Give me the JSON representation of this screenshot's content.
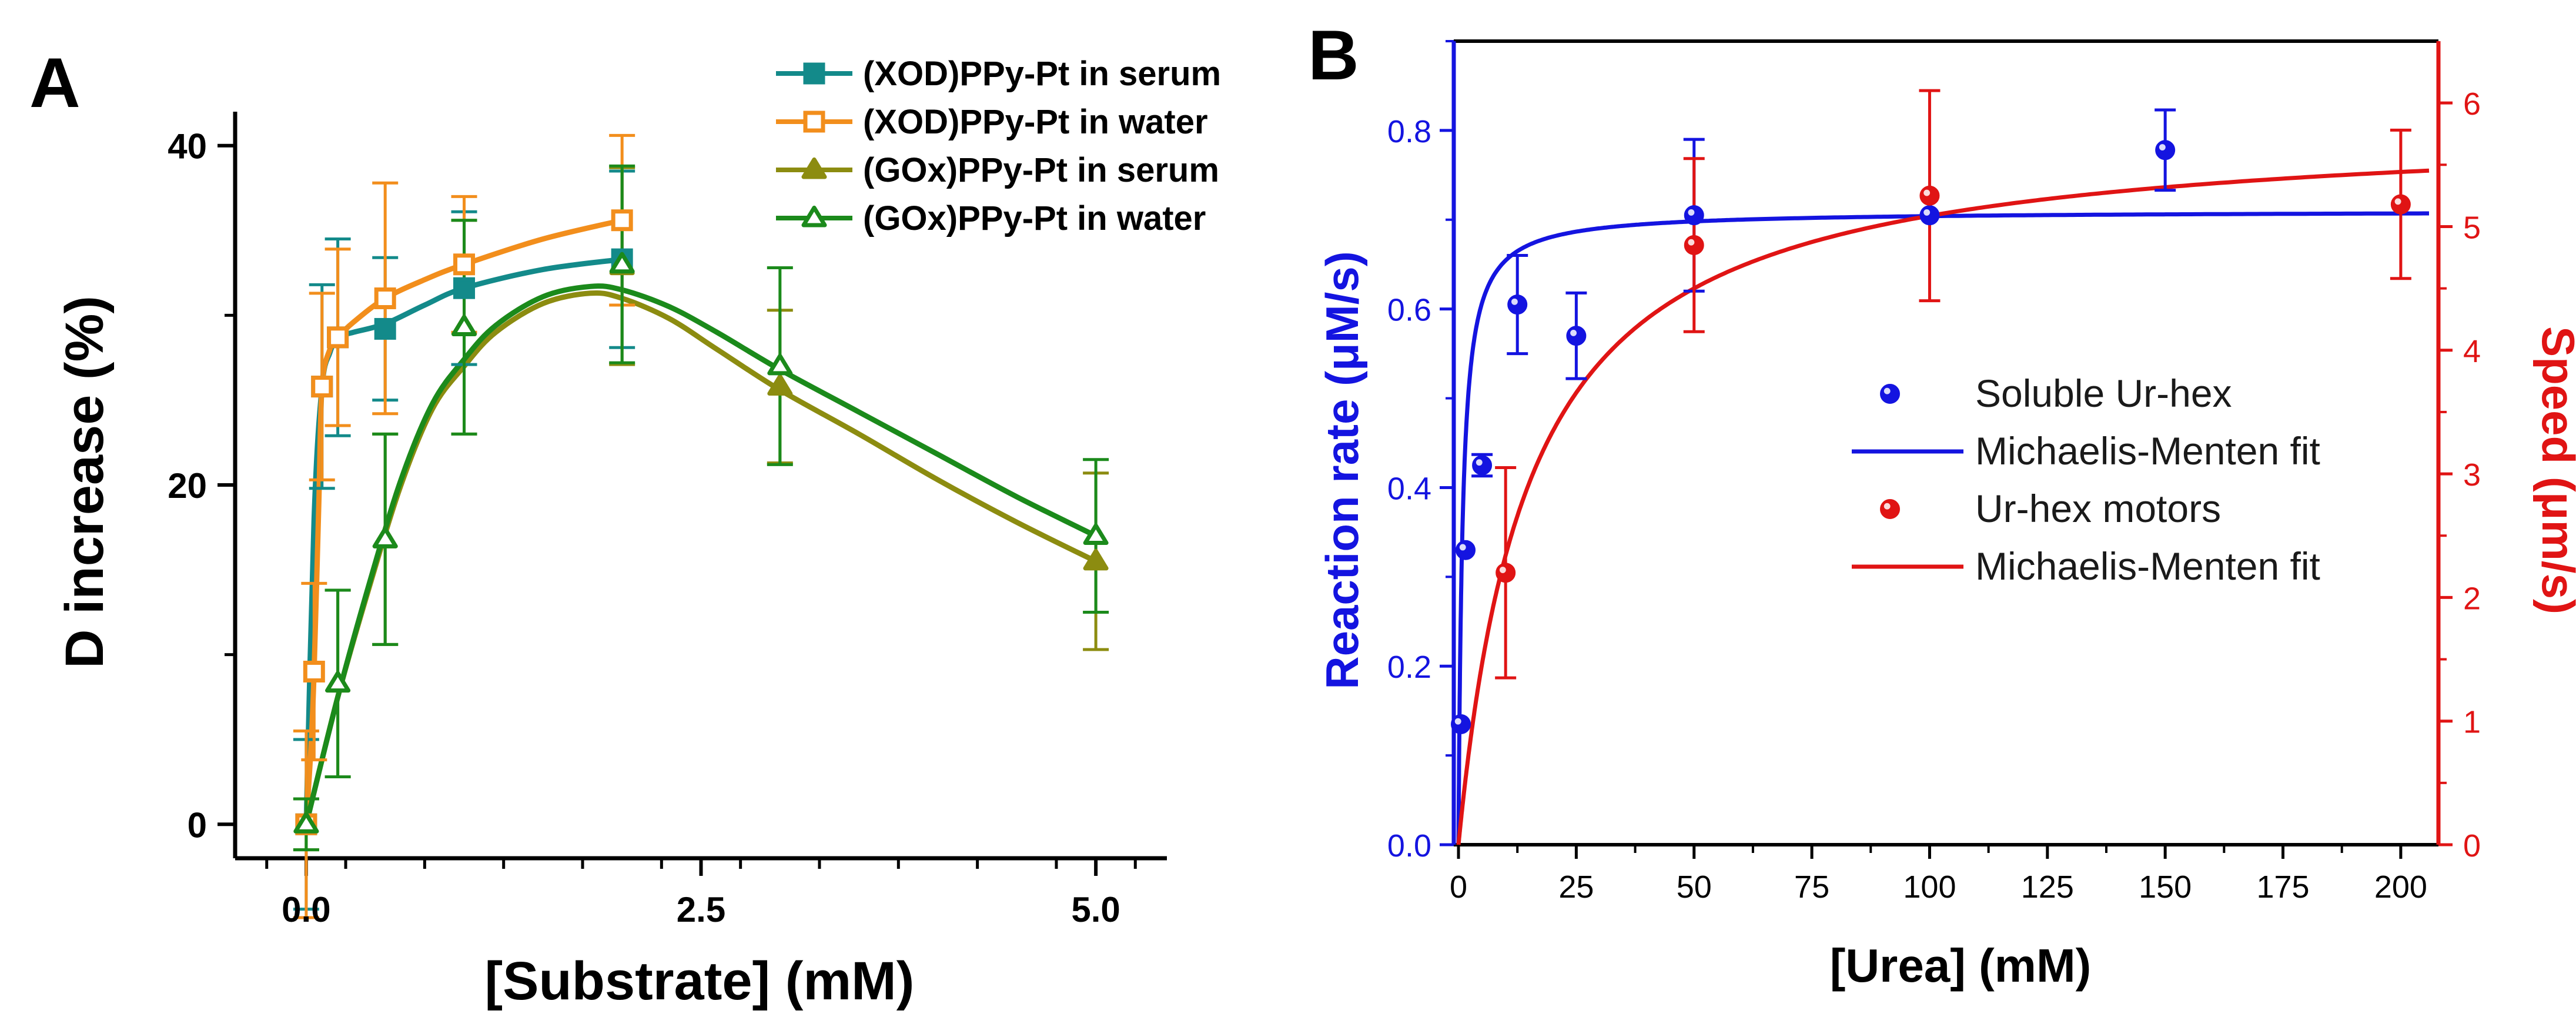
{
  "chart_data": [
    {
      "panel_label": "A",
      "type": "line",
      "xlabel": "[Substrate] (mM)",
      "ylabel": "D increase (%)",
      "xlim": [
        -0.45,
        5.45
      ],
      "ylim": [
        -2,
        42
      ],
      "x_ticks": [
        0.0,
        2.5,
        5.0
      ],
      "x_tick_labels": [
        "0.0",
        "2.5",
        "5.0"
      ],
      "y_ticks": [
        0,
        20,
        40
      ],
      "y_tick_labels": [
        "0",
        "20",
        "40"
      ],
      "legend_position": "top-right",
      "series": [
        {
          "name": "(XOD)PPy-Pt in serum",
          "color": "#138a8a",
          "marker": "square-filled",
          "x": [
            0.0,
            0.1,
            0.2,
            0.5,
            1.0,
            2.0
          ],
          "y": [
            0.0,
            25.8,
            28.7,
            29.2,
            31.6,
            33.3
          ],
          "err": [
            5.0,
            6.0,
            5.8,
            4.2,
            4.5,
            5.2
          ],
          "curve_x": [
            0.0,
            0.05,
            0.1,
            0.15,
            0.2,
            0.3,
            0.5,
            0.75,
            1.0,
            1.5,
            2.0
          ],
          "curve_y": [
            0.0,
            18.0,
            25.8,
            27.8,
            28.7,
            29.0,
            29.5,
            30.6,
            31.6,
            32.7,
            33.3
          ]
        },
        {
          "name": "(XOD)PPy-Pt in water",
          "color": "#f28e1c",
          "marker": "square-open",
          "x": [
            0.0,
            0.05,
            0.1,
            0.2,
            0.5,
            1.0,
            2.0
          ],
          "y": [
            0.0,
            9.0,
            25.8,
            28.7,
            31.0,
            33.0,
            35.6
          ],
          "err": [
            5.5,
            5.2,
            5.5,
            5.2,
            6.8,
            4.0,
            5.0
          ],
          "curve_x": [
            0.0,
            0.03,
            0.05,
            0.08,
            0.1,
            0.15,
            0.2,
            0.3,
            0.5,
            0.75,
            1.0,
            1.5,
            2.0
          ],
          "curve_y": [
            0.0,
            4.5,
            9.0,
            19.0,
            25.8,
            28.0,
            28.7,
            29.6,
            31.0,
            32.1,
            33.0,
            34.5,
            35.6
          ]
        },
        {
          "name": "(GOx)PPy-Pt in serum",
          "color": "#8c8c10",
          "marker": "triangle-filled",
          "x": [
            0.0,
            0.2,
            0.5,
            1.0,
            2.0,
            3.0,
            5.0
          ],
          "y": [
            0.0,
            8.3,
            16.8,
            29.3,
            32.9,
            25.8,
            15.5
          ],
          "err": [
            1.5,
            5.5,
            6.2,
            6.3,
            5.8,
            4.5,
            5.2
          ],
          "curve_x": [
            0.0,
            0.2,
            0.4,
            0.6,
            0.8,
            1.0,
            1.2,
            1.5,
            1.8,
            2.0,
            2.3,
            2.6,
            3.0,
            3.5,
            4.0,
            4.5,
            5.0
          ],
          "curve_y": [
            0.0,
            7.5,
            14.0,
            20.0,
            24.5,
            27.0,
            29.0,
            30.7,
            31.3,
            31.0,
            29.8,
            28.0,
            25.6,
            23.0,
            20.3,
            17.8,
            15.5
          ]
        },
        {
          "name": "(GOx)PPy-Pt in water",
          "color": "#1b8a1b",
          "marker": "triangle-open",
          "x": [
            0.0,
            0.2,
            0.5,
            1.0,
            2.0,
            3.0,
            5.0
          ],
          "y": [
            0.0,
            8.3,
            16.8,
            29.3,
            33.0,
            27.0,
            17.0
          ],
          "err": [
            1.5,
            5.5,
            6.2,
            6.3,
            5.8,
            5.8,
            4.5
          ],
          "curve_x": [
            0.0,
            0.2,
            0.4,
            0.6,
            0.8,
            1.0,
            1.2,
            1.5,
            1.8,
            2.0,
            2.3,
            2.6,
            3.0,
            3.5,
            4.0,
            4.5,
            5.0
          ],
          "curve_y": [
            0.0,
            7.5,
            14.2,
            20.3,
            24.8,
            27.4,
            29.4,
            31.1,
            31.7,
            31.5,
            30.5,
            29.0,
            26.8,
            24.3,
            21.8,
            19.3,
            17.0
          ]
        }
      ]
    },
    {
      "panel_label": "B",
      "type": "scatter",
      "xlabel": "[Urea] (mM)",
      "ylabel_left": "Reaction rate (μM/s)",
      "ylabel_left_color": "#1414e0",
      "ylabel_right": "Speed (μm/s)",
      "ylabel_right_color": "#e01414",
      "xlim": [
        -1,
        208
      ],
      "ylim_left": [
        0,
        0.9
      ],
      "ylim_right": [
        0,
        6.5
      ],
      "x_ticks": [
        0,
        25,
        50,
        75,
        100,
        125,
        150,
        175,
        200
      ],
      "x_tick_labels": [
        "0",
        "25",
        "50",
        "75",
        "100",
        "125",
        "150",
        "175",
        "200"
      ],
      "y_left_ticks": [
        0.0,
        0.2,
        0.4,
        0.6,
        0.8
      ],
      "y_left_tick_labels": [
        "0.0",
        "0.2",
        "0.4",
        "0.6",
        "0.8"
      ],
      "y_right_ticks": [
        0,
        1,
        2,
        3,
        4,
        5,
        6
      ],
      "y_right_tick_labels": [
        "0",
        "1",
        "2",
        "3",
        "4",
        "5",
        "6"
      ],
      "legend_position": "center-right",
      "series": [
        {
          "name": "Soluble Ur-hex",
          "axis": "left",
          "color": "#1414e0",
          "marker": "circle",
          "x": [
            0.5,
            1.5,
            5,
            12.5,
            25,
            50,
            100,
            150
          ],
          "y": [
            0.135,
            0.33,
            0.425,
            0.605,
            0.57,
            0.705,
            0.705,
            0.778
          ],
          "err": [
            0.0,
            0.0,
            0.012,
            0.055,
            0.048,
            0.085,
            0.0,
            0.045
          ]
        },
        {
          "name": "Michaelis-Menten fit",
          "axis": "left",
          "color": "#1414e0",
          "fit": "michaelis-menten",
          "vmax": 0.71,
          "km": 0.85,
          "x_range": [
            0,
            206
          ]
        },
        {
          "name": "Ur-hex motors",
          "axis": "right",
          "color": "#e01414",
          "marker": "circle",
          "x": [
            10,
            50,
            100,
            200
          ],
          "y": [
            2.2,
            4.85,
            5.25,
            5.18
          ],
          "err": [
            0.85,
            0.7,
            0.85,
            0.6
          ]
        },
        {
          "name": "Michaelis-Menten fit",
          "axis": "right",
          "color": "#e01414",
          "fit": "michaelis-menten",
          "vmax": 5.85,
          "km": 15.0,
          "x_range": [
            0,
            206
          ]
        }
      ]
    }
  ]
}
